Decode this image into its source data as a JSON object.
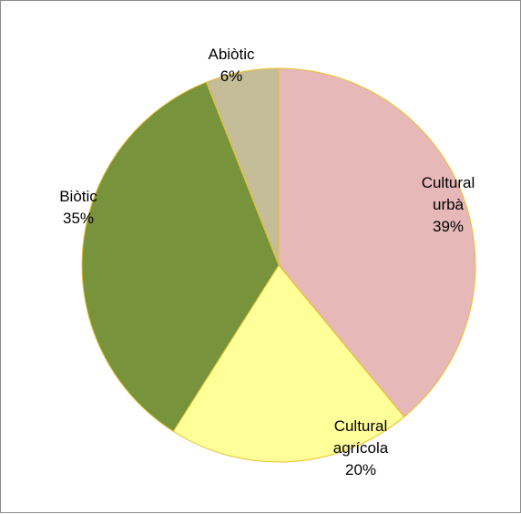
{
  "chart_data": {
    "type": "pie",
    "slices": [
      {
        "label_lines": [
          "Cultural",
          "urbà"
        ],
        "value": 39,
        "value_text": "39%",
        "color": "#e6b8b8"
      },
      {
        "label_lines": [
          "Cultural",
          "agrícola"
        ],
        "value": 20,
        "value_text": "20%",
        "color": "#ffff99"
      },
      {
        "label_lines": [
          "Biòtic"
        ],
        "value": 35,
        "value_text": "35%",
        "color": "#77933c"
      },
      {
        "label_lines": [
          "Abiòtic"
        ],
        "value": 6,
        "value_text": "6%",
        "color": "#c4bd97"
      }
    ],
    "start_angle_deg": 0,
    "direction": "clockwise",
    "slice_border_color": "#e8c02a"
  }
}
